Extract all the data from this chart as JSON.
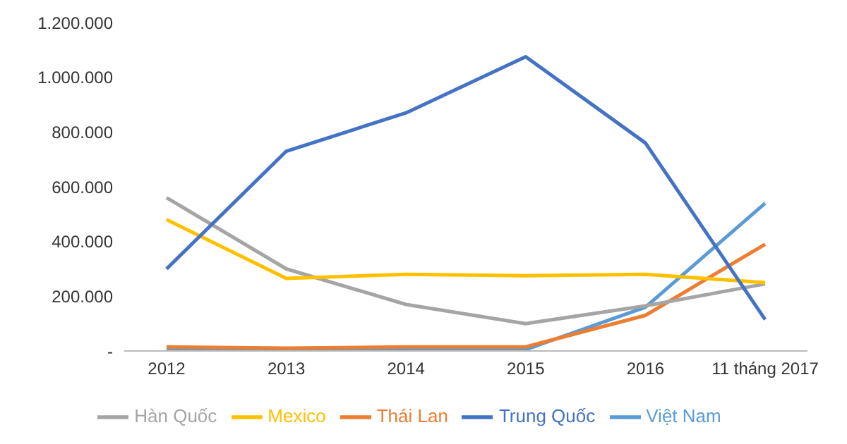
{
  "chart_data": {
    "type": "line",
    "categories": [
      "2012",
      "2013",
      "2014",
      "2015",
      "2016",
      "11 tháng 2017"
    ],
    "series": [
      {
        "name": "Việt Nam",
        "color": "#5b9bd5",
        "values": [
          5000,
          5000,
          5000,
          5000,
          160000,
          540000
        ]
      },
      {
        "name": "Thái Lan",
        "color": "#ed7d31",
        "values": [
          15000,
          10000,
          15000,
          15000,
          130000,
          390000
        ]
      },
      {
        "name": "Hàn Quốc",
        "color": "#a5a5a5",
        "values": [
          560000,
          300000,
          170000,
          100000,
          165000,
          245000
        ]
      },
      {
        "name": "Mexico",
        "color": "#ffc000",
        "values": [
          480000,
          265000,
          280000,
          275000,
          280000,
          250000
        ]
      },
      {
        "name": "Trung Quốc",
        "color": "#4472c4",
        "values": [
          300000,
          730000,
          870000,
          1075000,
          760000,
          115000
        ]
      }
    ],
    "ylim": [
      0,
      1200000
    ],
    "yticks": [
      {
        "value": 0,
        "label": "-"
      },
      {
        "value": 200000,
        "label": "200.000"
      },
      {
        "value": 400000,
        "label": "400.000"
      },
      {
        "value": 600000,
        "label": "600.000"
      },
      {
        "value": 800000,
        "label": "800.000"
      },
      {
        "value": 1000000,
        "label": "1.000.000"
      },
      {
        "value": 1200000,
        "label": "1.200.000"
      }
    ],
    "legend": "bottom",
    "marker": "none",
    "line_style": "solid"
  }
}
